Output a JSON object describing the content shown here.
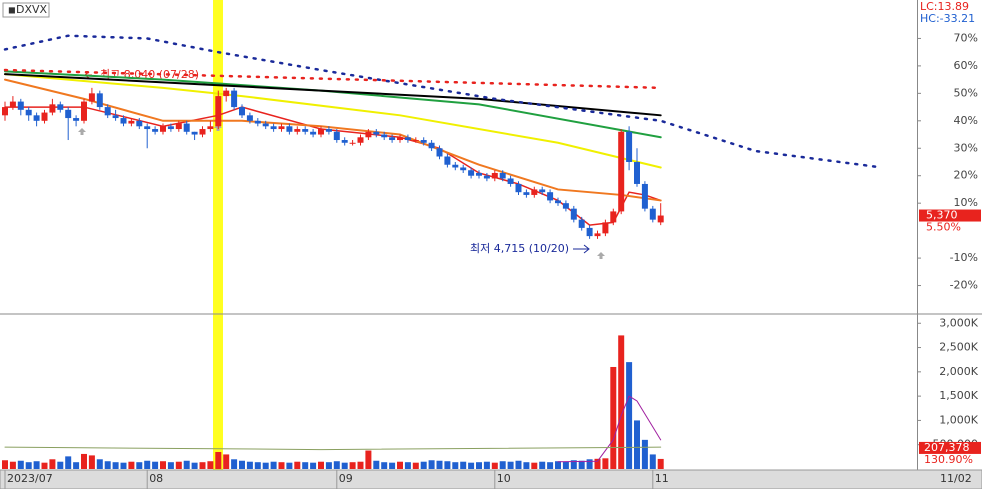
{
  "chart_data": {
    "type": "candlestick",
    "title": "DXVX",
    "lc_label": "LC:13.89",
    "hc_label": "HC:-33.21",
    "high_annotation": "최고 8,040 (07/28)",
    "low_annotation": "최저 4,715 (10/20)",
    "last_price_label": "5,370",
    "last_change_label": "5.50%",
    "last_date_label": "11/02",
    "categories": [
      "2023/07",
      null,
      null,
      null,
      null,
      null,
      null,
      null,
      null,
      null,
      null,
      null,
      null,
      null,
      null,
      null,
      null,
      null,
      "08",
      null,
      null,
      null,
      null,
      null,
      null,
      null,
      null,
      null,
      null,
      null,
      null,
      null,
      null,
      null,
      null,
      null,
      null,
      null,
      null,
      null,
      null,
      null,
      "09",
      null,
      null,
      null,
      null,
      null,
      null,
      null,
      null,
      null,
      null,
      null,
      null,
      null,
      null,
      null,
      null,
      null,
      null,
      null,
      "10",
      null,
      null,
      null,
      null,
      null,
      null,
      null,
      null,
      null,
      null,
      null,
      null,
      null,
      null,
      null,
      null,
      null,
      null,
      null,
      "11",
      null
    ],
    "candles": [
      [
        42,
        47,
        40,
        45
      ],
      [
        45,
        49,
        44,
        47
      ],
      [
        47,
        48,
        42,
        44
      ],
      [
        44,
        45,
        40,
        42
      ],
      [
        42,
        43,
        38,
        40
      ],
      [
        40,
        44,
        39,
        43
      ],
      [
        43,
        48,
        42,
        46
      ],
      [
        46,
        47,
        43,
        44
      ],
      [
        44,
        45,
        33,
        41
      ],
      [
        41,
        42,
        38,
        40
      ],
      [
        40,
        48,
        39,
        47
      ],
      [
        47,
        52,
        46,
        50
      ],
      [
        50,
        51,
        44,
        45
      ],
      [
        45,
        46,
        41,
        42
      ],
      [
        42,
        44,
        40,
        41
      ],
      [
        41,
        42,
        38,
        39
      ],
      [
        39,
        41,
        38,
        40
      ],
      [
        40,
        41,
        37,
        38
      ],
      [
        38,
        39,
        30,
        37
      ],
      [
        37,
        38,
        35,
        36
      ],
      [
        36,
        39,
        35,
        38
      ],
      [
        38,
        39,
        36,
        37
      ],
      [
        37,
        40,
        36,
        39
      ],
      [
        39,
        40,
        35,
        36
      ],
      [
        36,
        36,
        33,
        35
      ],
      [
        35,
        38,
        34,
        37
      ],
      [
        37,
        40,
        36,
        38
      ],
      [
        38,
        51,
        37,
        49
      ],
      [
        49,
        52,
        47,
        51
      ],
      [
        51,
        52,
        44,
        45
      ],
      [
        45,
        46,
        41,
        42
      ],
      [
        42,
        43,
        39,
        40
      ],
      [
        40,
        41,
        38,
        39
      ],
      [
        39,
        40,
        37,
        38
      ],
      [
        38,
        39,
        36,
        37
      ],
      [
        37,
        39,
        36,
        38
      ],
      [
        38,
        39,
        35,
        36
      ],
      [
        36,
        38,
        35,
        37
      ],
      [
        37,
        38,
        35,
        36
      ],
      [
        36,
        37,
        34,
        35
      ],
      [
        35,
        38,
        34,
        37
      ],
      [
        37,
        38,
        35,
        36
      ],
      [
        36,
        37,
        32,
        33
      ],
      [
        33,
        34,
        31,
        32
      ],
      [
        32,
        33,
        31,
        32
      ],
      [
        32,
        35,
        31,
        34
      ],
      [
        34,
        37,
        33,
        36
      ],
      [
        36,
        37,
        34,
        35
      ],
      [
        35,
        36,
        33,
        34
      ],
      [
        34,
        35,
        32,
        33
      ],
      [
        33,
        35,
        32,
        34
      ],
      [
        34,
        35,
        32,
        33
      ],
      [
        33,
        34,
        32,
        33
      ],
      [
        33,
        34,
        31,
        32
      ],
      [
        32,
        33,
        29,
        30
      ],
      [
        30,
        31,
        26,
        27
      ],
      [
        27,
        28,
        23,
        24
      ],
      [
        24,
        25,
        22,
        23
      ],
      [
        23,
        24,
        21,
        22
      ],
      [
        22,
        23,
        19,
        20
      ],
      [
        21,
        22,
        19,
        20
      ],
      [
        20,
        21,
        18,
        19
      ],
      [
        19,
        22,
        18,
        21
      ],
      [
        21,
        22,
        18,
        19
      ],
      [
        19,
        20,
        16,
        17
      ],
      [
        17,
        18,
        13,
        14
      ],
      [
        14,
        15,
        12,
        13
      ],
      [
        13,
        16,
        12,
        15
      ],
      [
        15,
        16,
        13,
        14
      ],
      [
        14,
        15,
        10,
        11
      ],
      [
        11,
        12,
        9,
        10
      ],
      [
        10,
        11,
        7,
        8
      ],
      [
        8,
        9,
        3,
        4
      ],
      [
        4,
        5,
        0,
        1
      ],
      [
        1,
        2,
        -3,
        -2
      ],
      [
        -2,
        0,
        -3,
        -1
      ],
      [
        -1,
        4,
        -2,
        3
      ],
      [
        3,
        8,
        2,
        7
      ],
      [
        7,
        37,
        6,
        36
      ],
      [
        36,
        38,
        22,
        25
      ],
      [
        25,
        30,
        16,
        17
      ],
      [
        17,
        18,
        7,
        8
      ],
      [
        8,
        9,
        3,
        4
      ],
      [
        3,
        10,
        2,
        5.5
      ]
    ],
    "up_color": "#e8231e",
    "down_color": "#2060d0",
    "ylim": [
      -30,
      84
    ],
    "yticks": [
      {
        "value": 70,
        "label": "70%"
      },
      {
        "value": 60,
        "label": "60%"
      },
      {
        "value": 50,
        "label": "50%"
      },
      {
        "value": 40,
        "label": "40%"
      },
      {
        "value": 30,
        "label": "30%"
      },
      {
        "value": 20,
        "label": "20%"
      },
      {
        "value": 10,
        "label": "10%"
      },
      {
        "value": -10,
        "label": "-10%"
      },
      {
        "value": -20,
        "label": "-20%"
      }
    ],
    "lines": [
      {
        "color": "#e8231e",
        "dotted": false,
        "x": [
          0,
          10,
          20,
          27,
          30,
          40,
          50,
          55,
          60,
          65,
          70,
          74,
          77,
          79,
          81,
          83
        ],
        "values": [
          45,
          45,
          38,
          42,
          45,
          37,
          34,
          30,
          21,
          17,
          11,
          2,
          3,
          14,
          13,
          11
        ]
      },
      {
        "color": "#f07820",
        "dotted": false,
        "x": [
          0,
          10,
          20,
          30,
          40,
          50,
          60,
          70,
          78,
          83
        ],
        "values": [
          55,
          48,
          40,
          40,
          38,
          35,
          24,
          15,
          13,
          11
        ]
      },
      {
        "color": "#f0f000",
        "dotted": false,
        "x": [
          0,
          20,
          30,
          50,
          70,
          83
        ],
        "values": [
          57,
          52,
          49,
          42,
          32,
          23
        ]
      },
      {
        "color": "#20a040",
        "dotted": false,
        "x": [
          0,
          20,
          40,
          60,
          83
        ],
        "values": [
          58,
          55,
          51,
          46,
          34
        ]
      },
      {
        "color": "#000000",
        "dotted": false,
        "x": [
          0,
          20,
          40,
          60,
          83
        ],
        "values": [
          57,
          54,
          51,
          48,
          42
        ]
      },
      {
        "color": "#1a2a9a",
        "dotted": true,
        "x": [
          0,
          8,
          18,
          27,
          41,
          62,
          83,
          95,
          111
        ],
        "values": [
          66,
          71,
          70,
          65,
          58,
          48,
          40,
          29,
          23
        ]
      },
      {
        "color": "#e8231e",
        "dotted": true,
        "x": [
          0,
          83
        ],
        "values": [
          58.5,
          52
        ]
      }
    ],
    "volume": {
      "values": [
        180000,
        150000,
        170000,
        140000,
        160000,
        130000,
        200000,
        150000,
        260000,
        140000,
        310000,
        280000,
        200000,
        160000,
        140000,
        130000,
        150000,
        140000,
        170000,
        150000,
        160000,
        140000,
        150000,
        170000,
        130000,
        140000,
        160000,
        350000,
        300000,
        200000,
        170000,
        150000,
        140000,
        130000,
        150000,
        140000,
        130000,
        150000,
        140000,
        130000,
        150000,
        140000,
        160000,
        130000,
        140000,
        150000,
        380000,
        170000,
        140000,
        130000,
        150000,
        140000,
        130000,
        150000,
        180000,
        170000,
        160000,
        140000,
        150000,
        130000,
        140000,
        150000,
        130000,
        160000,
        150000,
        170000,
        140000,
        130000,
        150000,
        140000,
        160000,
        150000,
        180000,
        170000,
        200000,
        210000,
        220000,
        2100000,
        2750000,
        2200000,
        1000000,
        600000,
        300000,
        207378
      ],
      "ylim": [
        0,
        3170000
      ],
      "yticks": [
        {
          "value": 3000000,
          "label": "3,000K"
        },
        {
          "value": 2500000,
          "label": "2,500K"
        },
        {
          "value": 2000000,
          "label": "2,000K"
        },
        {
          "value": 1500000,
          "label": "1,500K"
        },
        {
          "value": 1000000,
          "label": "1,000K"
        },
        {
          "value": 500000,
          "label": "500,000"
        }
      ],
      "last_label": "207,378",
      "last_change_label": "130.90%",
      "lines": [
        {
          "color": "#a020a0",
          "x": [
            70,
            75,
            77,
            78,
            79,
            80,
            83
          ],
          "values": [
            150000,
            160000,
            600000,
            1100000,
            1500000,
            1400000,
            600000
          ]
        },
        {
          "color": "#8aa060",
          "x": [
            0,
            40,
            83
          ],
          "values": [
            450000,
            400000,
            450000
          ]
        }
      ]
    }
  }
}
